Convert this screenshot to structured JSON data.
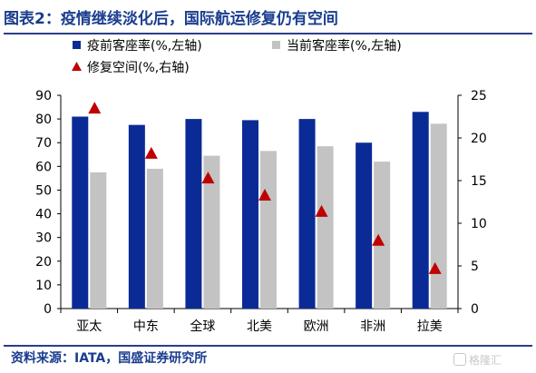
{
  "figure": {
    "title": "图表2：疫情继续淡化后，国际航运修复仍有空间",
    "source": "资料来源：IATA，国盛证券研究所",
    "watermark": "格隆汇"
  },
  "chart_data": {
    "type": "bar",
    "categories": [
      "亚太",
      "中东",
      "全球",
      "北美",
      "欧洲",
      "非洲",
      "拉美"
    ],
    "series": [
      {
        "name": "疫前客座率(%,左轴)",
        "kind": "bar",
        "axis": "left",
        "color": "#0a2b96",
        "values": [
          81,
          77.5,
          80,
          79.5,
          80,
          70,
          83
        ]
      },
      {
        "name": "当前客座率(%,左轴)",
        "kind": "bar",
        "axis": "left",
        "color": "#c3c3c3",
        "values": [
          57.5,
          59,
          64.5,
          66.5,
          68.5,
          62,
          78
        ]
      },
      {
        "name": "修复空间(%,右轴)",
        "kind": "marker",
        "axis": "right",
        "color": "#c00000",
        "values": [
          23.5,
          18.2,
          15.3,
          13.3,
          11.4,
          8.0,
          4.7
        ]
      }
    ],
    "ylim_left": [
      0,
      90
    ],
    "yticks_left": [
      0,
      10,
      20,
      30,
      40,
      50,
      60,
      70,
      80,
      90
    ],
    "ylim_right": [
      0,
      25
    ],
    "yticks_right": [
      0,
      5,
      10,
      15,
      20,
      25
    ],
    "grid": false,
    "legend_position": "top"
  }
}
